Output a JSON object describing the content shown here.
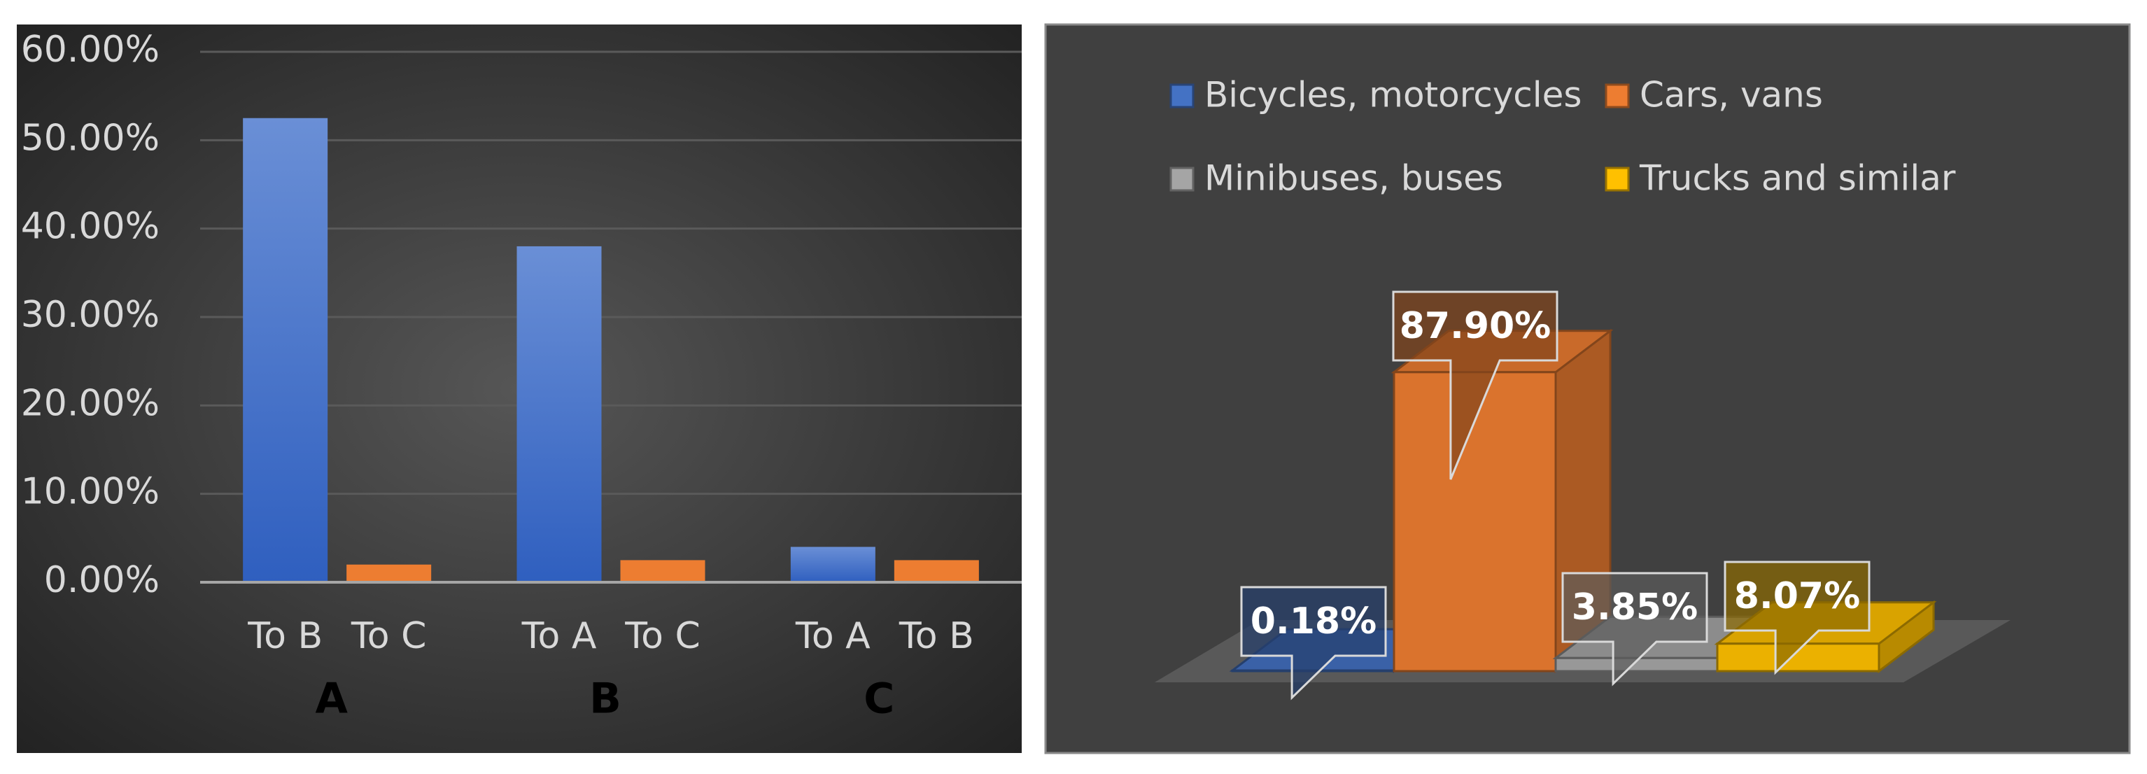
{
  "chart_data": [
    {
      "type": "bar",
      "categories": [
        "A",
        "B",
        "C"
      ],
      "subcategories": [
        [
          "To B",
          "To C"
        ],
        [
          "To A",
          "To C"
        ],
        [
          "To A",
          "To B"
        ]
      ],
      "series": [
        {
          "color": "#4472c4",
          "values": [
            52.5,
            38,
            4
          ]
        },
        {
          "color": "#ed7d31",
          "values": [
            2,
            2.5,
            2.5
          ]
        }
      ],
      "ylim": [
        0,
        60
      ],
      "yticks": [
        {
          "value": 0,
          "label": "0.00%"
        },
        {
          "value": 10,
          "label": "10.00%"
        },
        {
          "value": 20,
          "label": "20.00%"
        },
        {
          "value": 30,
          "label": "30.00%"
        },
        {
          "value": 40,
          "label": "40.00%"
        },
        {
          "value": 50,
          "label": "50.00%"
        },
        {
          "value": 60,
          "label": "60.00%"
        }
      ],
      "grid": true
    },
    {
      "type": "bar3d",
      "categories": [
        "Bicycles, motorcycles",
        "Cars, vans",
        "Minibuses, buses",
        "Trucks and similar"
      ],
      "values": [
        0.18,
        87.9,
        3.85,
        8.07
      ],
      "value_labels": [
        "0.18%",
        "87.90%",
        "3.85%",
        "8.07%"
      ],
      "colors": [
        "#4472c4",
        "#ed7d31",
        "#a5a5a5",
        "#ffc000"
      ],
      "legend": "top"
    }
  ]
}
